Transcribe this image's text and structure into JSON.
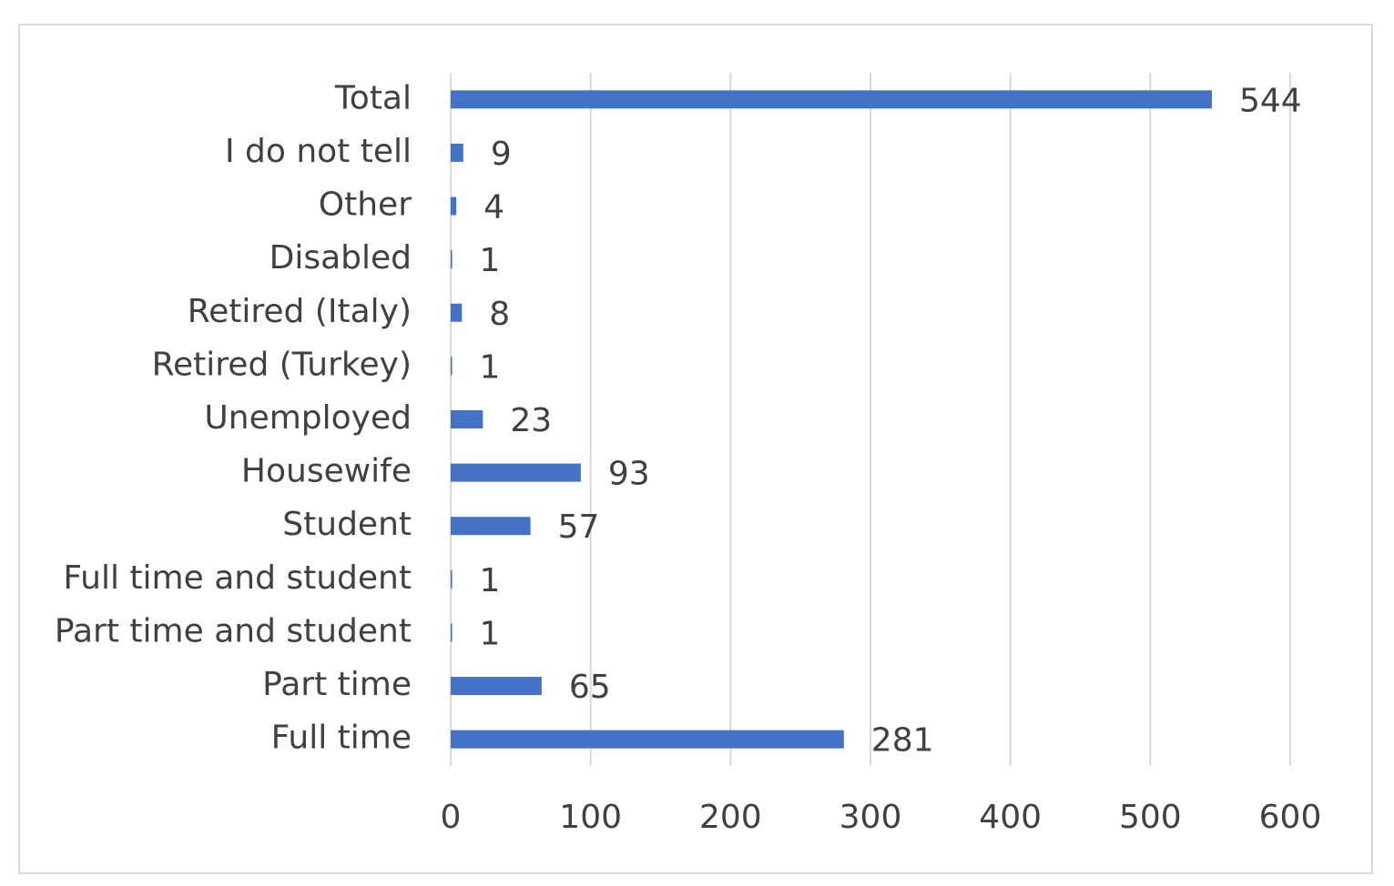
{
  "chart_data": {
    "type": "bar",
    "orientation": "horizontal",
    "categories": [
      "Total",
      "I do not tell",
      "Other",
      "Disabled",
      "Retired (Italy)",
      "Retired (Turkey)",
      "Unemployed",
      "Housewife",
      "Student",
      "Full time and student",
      "Part time and student",
      "Part time",
      "Full time"
    ],
    "values": [
      544,
      9,
      4,
      1,
      8,
      1,
      23,
      93,
      57,
      1,
      1,
      65,
      281
    ],
    "color": "#4472c4",
    "xlim": [
      0,
      600
    ],
    "xticks": [
      0,
      100,
      200,
      300,
      400,
      500,
      600
    ],
    "grid": true
  }
}
